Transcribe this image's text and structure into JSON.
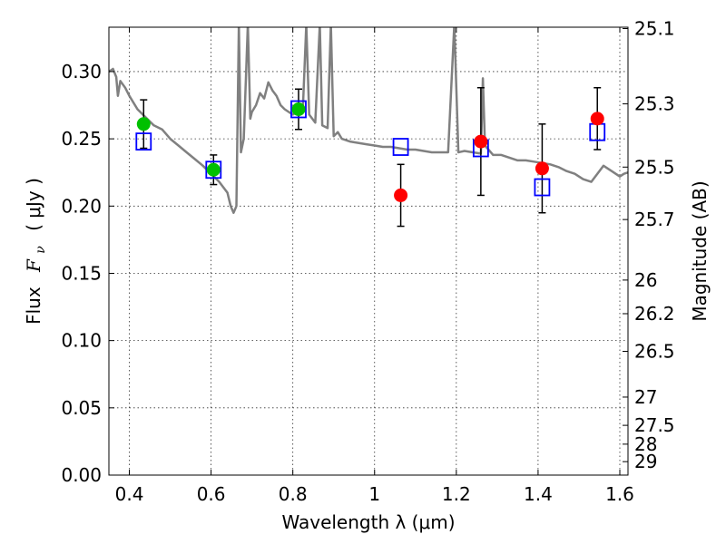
{
  "chart_data": {
    "type": "scatter",
    "title": "",
    "xlabel": "Wavelength  λ (μm)",
    "ylabel_left": "Flux",
    "ylabel_left_symbol": "F",
    "ylabel_left_subscript": "ν",
    "ylabel_left_unit": "( μJy )",
    "ylabel_right": "Magnitude (AB)",
    "xlim": [
      0.35,
      1.62
    ],
    "ylim": [
      0.0,
      0.333
    ],
    "grid": true,
    "x_ticks": [
      {
        "value": 0.4,
        "label": "0.4"
      },
      {
        "value": 0.6,
        "label": "0.6"
      },
      {
        "value": 0.8,
        "label": "0.8"
      },
      {
        "value": 1.0,
        "label": "1"
      },
      {
        "value": 1.2,
        "label": "1.2"
      },
      {
        "value": 1.4,
        "label": "1.4"
      },
      {
        "value": 1.6,
        "label": "1.6"
      }
    ],
    "y_ticks": [
      {
        "value": 0.0,
        "label": "0.00"
      },
      {
        "value": 0.05,
        "label": "0.05"
      },
      {
        "value": 0.1,
        "label": "0.10"
      },
      {
        "value": 0.15,
        "label": "0.15"
      },
      {
        "value": 0.2,
        "label": "0.20"
      },
      {
        "value": 0.25,
        "label": "0.25"
      },
      {
        "value": 0.3,
        "label": "0.30"
      }
    ],
    "right_ticks": [
      {
        "flux": 0.332,
        "label": "25.1"
      },
      {
        "flux": 0.276,
        "label": "25.3"
      },
      {
        "flux": 0.229,
        "label": "25.5"
      },
      {
        "flux": 0.19,
        "label": "25.7"
      },
      {
        "flux": 0.145,
        "label": "26"
      },
      {
        "flux": 0.12,
        "label": "26.2"
      },
      {
        "flux": 0.092,
        "label": "26.5"
      },
      {
        "flux": 0.058,
        "label": "27"
      },
      {
        "flux": 0.037,
        "label": "27.5"
      },
      {
        "flux": 0.023,
        "label": "28"
      },
      {
        "flux": 0.01,
        "label": "29"
      }
    ],
    "series": [
      {
        "name": "model spectrum",
        "kind": "line",
        "color": "#808080",
        "points": [
          [
            0.35,
            0.3
          ],
          [
            0.36,
            0.302
          ],
          [
            0.368,
            0.296
          ],
          [
            0.372,
            0.282
          ],
          [
            0.378,
            0.293
          ],
          [
            0.39,
            0.288
          ],
          [
            0.4,
            0.282
          ],
          [
            0.42,
            0.272
          ],
          [
            0.44,
            0.266
          ],
          [
            0.46,
            0.26
          ],
          [
            0.48,
            0.257
          ],
          [
            0.5,
            0.25
          ],
          [
            0.52,
            0.245
          ],
          [
            0.54,
            0.24
          ],
          [
            0.56,
            0.235
          ],
          [
            0.58,
            0.23
          ],
          [
            0.6,
            0.224
          ],
          [
            0.62,
            0.218
          ],
          [
            0.64,
            0.21
          ],
          [
            0.648,
            0.2
          ],
          [
            0.655,
            0.195
          ],
          [
            0.662,
            0.2
          ],
          [
            0.668,
            0.335
          ],
          [
            0.673,
            0.24
          ],
          [
            0.68,
            0.25
          ],
          [
            0.69,
            0.335
          ],
          [
            0.696,
            0.265
          ],
          [
            0.7,
            0.27
          ],
          [
            0.71,
            0.275
          ],
          [
            0.72,
            0.284
          ],
          [
            0.73,
            0.28
          ],
          [
            0.74,
            0.292
          ],
          [
            0.75,
            0.286
          ],
          [
            0.76,
            0.282
          ],
          [
            0.77,
            0.275
          ],
          [
            0.78,
            0.272
          ],
          [
            0.79,
            0.27
          ],
          [
            0.8,
            0.268
          ],
          [
            0.815,
            0.272
          ],
          [
            0.825,
            0.275
          ],
          [
            0.833,
            0.335
          ],
          [
            0.84,
            0.268
          ],
          [
            0.855,
            0.262
          ],
          [
            0.866,
            0.335
          ],
          [
            0.872,
            0.26
          ],
          [
            0.885,
            0.258
          ],
          [
            0.893,
            0.335
          ],
          [
            0.9,
            0.252
          ],
          [
            0.91,
            0.255
          ],
          [
            0.92,
            0.25
          ],
          [
            0.94,
            0.248
          ],
          [
            0.96,
            0.247
          ],
          [
            0.98,
            0.246
          ],
          [
            1.0,
            0.245
          ],
          [
            1.02,
            0.244
          ],
          [
            1.04,
            0.244
          ],
          [
            1.06,
            0.243
          ],
          [
            1.08,
            0.242
          ],
          [
            1.1,
            0.242
          ],
          [
            1.12,
            0.241
          ],
          [
            1.14,
            0.24
          ],
          [
            1.16,
            0.24
          ],
          [
            1.18,
            0.24
          ],
          [
            1.195,
            0.335
          ],
          [
            1.205,
            0.24
          ],
          [
            1.22,
            0.241
          ],
          [
            1.24,
            0.24
          ],
          [
            1.26,
            0.239
          ],
          [
            1.265,
            0.295
          ],
          [
            1.27,
            0.245
          ],
          [
            1.29,
            0.238
          ],
          [
            1.31,
            0.238
          ],
          [
            1.33,
            0.236
          ],
          [
            1.35,
            0.234
          ],
          [
            1.37,
            0.234
          ],
          [
            1.39,
            0.233
          ],
          [
            1.41,
            0.232
          ],
          [
            1.43,
            0.231
          ],
          [
            1.45,
            0.229
          ],
          [
            1.47,
            0.226
          ],
          [
            1.49,
            0.224
          ],
          [
            1.51,
            0.22
          ],
          [
            1.53,
            0.218
          ],
          [
            1.55,
            0.226
          ],
          [
            1.56,
            0.23
          ],
          [
            1.58,
            0.226
          ],
          [
            1.6,
            0.222
          ],
          [
            1.61,
            0.224
          ],
          [
            1.62,
            0.225
          ]
        ]
      },
      {
        "name": "observed (green)",
        "kind": "points",
        "color": "#00c000",
        "points": [
          {
            "x": 0.435,
            "y": 0.261,
            "err": 0.018
          },
          {
            "x": 0.606,
            "y": 0.227,
            "err": 0.011
          },
          {
            "x": 0.814,
            "y": 0.272,
            "err": 0.015
          }
        ]
      },
      {
        "name": "observed (red)",
        "kind": "points",
        "color": "#ff0000",
        "points": [
          {
            "x": 1.064,
            "y": 0.208,
            "err": 0.023
          },
          {
            "x": 1.26,
            "y": 0.248,
            "err": 0.04
          },
          {
            "x": 1.41,
            "y": 0.228,
            "err": 0.033
          },
          {
            "x": 1.545,
            "y": 0.265,
            "err": 0.023
          }
        ]
      },
      {
        "name": "model photometry",
        "kind": "squares",
        "color": "#0000ff",
        "points": [
          {
            "x": 0.435,
            "y": 0.248
          },
          {
            "x": 0.606,
            "y": 0.227
          },
          {
            "x": 0.814,
            "y": 0.272
          },
          {
            "x": 1.064,
            "y": 0.244
          },
          {
            "x": 1.26,
            "y": 0.243
          },
          {
            "x": 1.41,
            "y": 0.214
          },
          {
            "x": 1.545,
            "y": 0.255
          }
        ]
      }
    ]
  }
}
